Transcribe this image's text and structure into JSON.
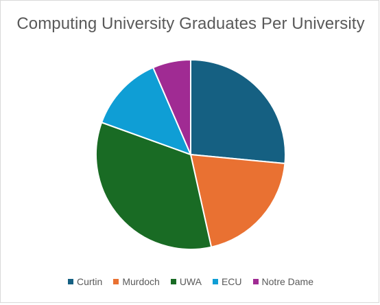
{
  "chart_data": {
    "type": "pie",
    "title": "Computing University Graduates Per University",
    "categories": [
      "Curtin",
      "Murdoch",
      "UWA",
      "ECU",
      "Notre Dame"
    ],
    "values": [
      26.5,
      20,
      34,
      13,
      6.5
    ],
    "colors": [
      "#156082",
      "#E97132",
      "#196B24",
      "#0F9ED5",
      "#A02B93"
    ],
    "legend_position": "bottom",
    "start_angle_deg": 0,
    "direction": "clockwise"
  }
}
